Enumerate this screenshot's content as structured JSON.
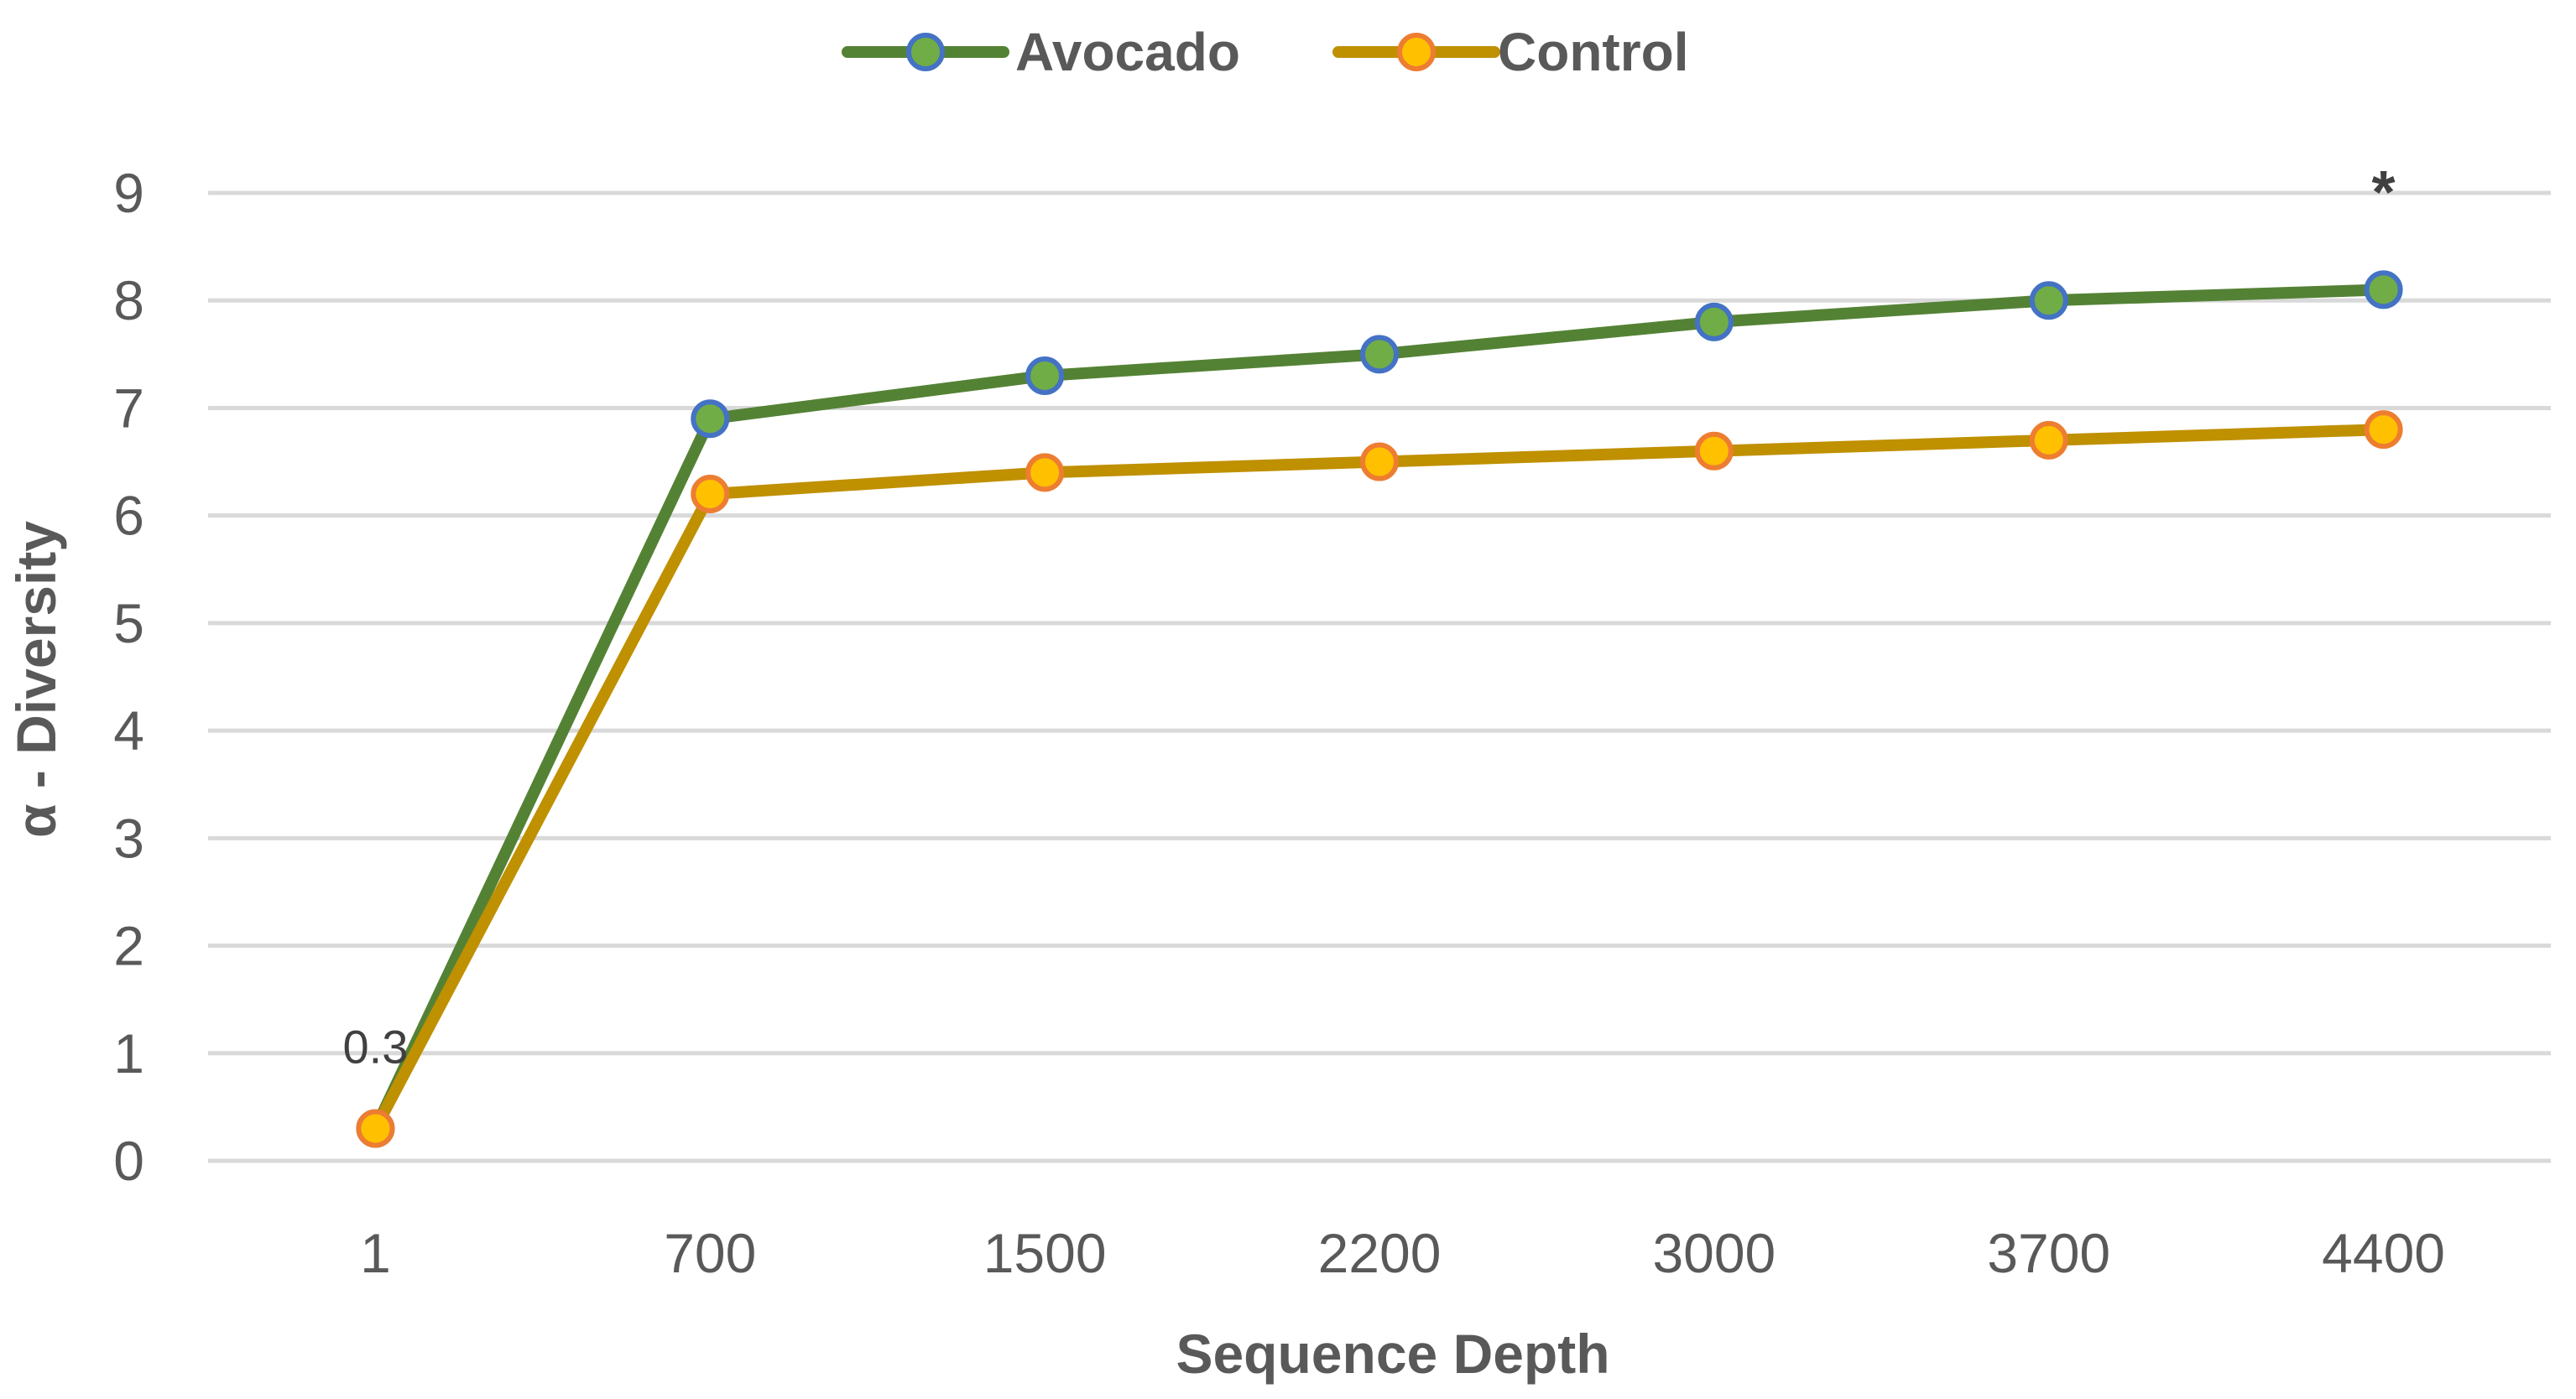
{
  "chart_data": {
    "type": "line",
    "title": "",
    "xlabel": "Sequence Depth",
    "ylabel": "α - Diversity",
    "categories": [
      "1",
      "700",
      "1500",
      "2200",
      "3000",
      "3700",
      "4400"
    ],
    "ylim": [
      0,
      9
    ],
    "yticks": [
      "0",
      "1",
      "2",
      "3",
      "4",
      "5",
      "6",
      "7",
      "8",
      "9"
    ],
    "grid": true,
    "legend_position": "top-center",
    "series": [
      {
        "name": "Avocado",
        "values": [
          0.3,
          6.9,
          7.3,
          7.5,
          7.8,
          8.0,
          8.1
        ],
        "line_color": "#548235",
        "marker_fill": "#70ad47",
        "marker_edge": "#4472c4"
      },
      {
        "name": "Control",
        "values": [
          0.3,
          6.2,
          6.4,
          6.5,
          6.6,
          6.7,
          6.8
        ],
        "line_color": "#bf9000",
        "marker_fill": "#ffc000",
        "marker_edge": "#ed7d31"
      }
    ],
    "data_labels": [
      {
        "category": "1",
        "value": 0.3,
        "text": "0.3"
      }
    ],
    "annotations": [
      {
        "category": "4400",
        "text": "*"
      }
    ]
  }
}
